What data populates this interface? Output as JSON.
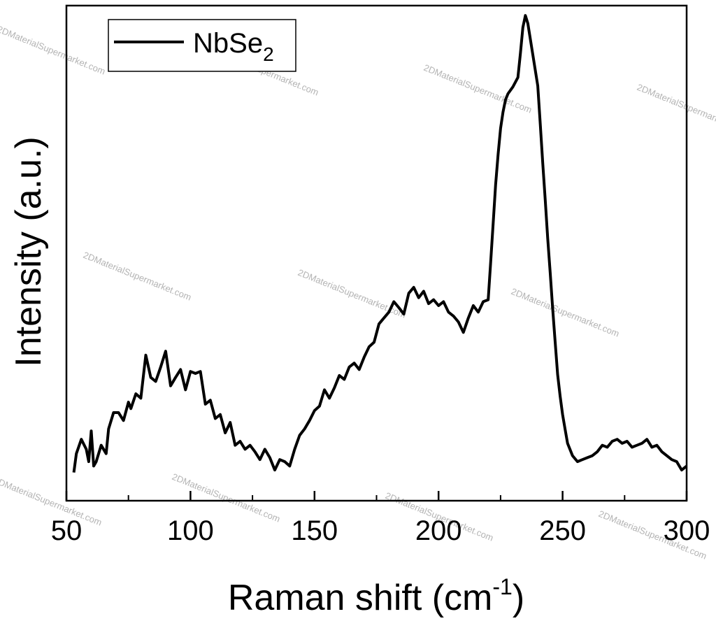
{
  "chart_data": {
    "type": "line",
    "title": "",
    "xlabel": "Raman shift (cm",
    "xlabel_sup": "-1",
    "xlabel_close": ")",
    "ylabel": "Intensity (a.u.)",
    "xlim": [
      50,
      300
    ],
    "ylim": [
      0,
      1
    ],
    "y_tick_labels_shown": false,
    "x_ticks": [
      50,
      100,
      150,
      200,
      250,
      300
    ],
    "x_tick_labels": [
      "50",
      "100",
      "150",
      "200",
      "250",
      "300"
    ],
    "grid": false,
    "legend": {
      "position": "top-left",
      "entries": [
        {
          "base": "NbSe",
          "sub": "2"
        }
      ]
    },
    "series": [
      {
        "name": "NbSe2",
        "color": "#000000",
        "x": [
          53,
          54,
          56,
          58,
          59,
          60,
          61,
          62,
          64,
          66,
          67,
          69,
          71,
          73,
          75,
          76,
          78,
          80,
          82,
          84,
          86,
          88,
          90,
          92,
          94,
          96,
          98,
          100,
          102,
          104,
          106,
          108,
          110,
          112,
          114,
          116,
          118,
          120,
          122,
          124,
          126,
          128,
          130,
          132,
          134,
          136,
          138,
          140,
          142,
          144,
          146,
          148,
          150,
          152,
          154,
          156,
          158,
          160,
          162,
          164,
          166,
          168,
          170,
          172,
          174,
          176,
          178,
          180,
          182,
          184,
          186,
          188,
          190,
          192,
          194,
          196,
          198,
          200,
          202,
          204,
          206,
          208,
          210,
          212,
          214,
          216,
          218,
          220,
          221,
          222,
          223,
          224,
          225,
          226,
          227,
          228,
          230,
          232,
          233,
          234,
          235,
          236,
          238,
          240,
          241,
          242,
          243,
          244,
          245,
          246,
          247,
          248,
          249,
          250,
          251,
          252,
          254,
          256,
          258,
          260,
          262,
          264,
          266,
          268,
          270,
          272,
          274,
          276,
          278,
          280,
          282,
          284,
          286,
          288,
          290,
          292,
          294,
          296,
          298,
          300
        ],
        "values": [
          0.057,
          0.095,
          0.124,
          0.104,
          0.079,
          0.141,
          0.07,
          0.079,
          0.112,
          0.095,
          0.145,
          0.178,
          0.178,
          0.162,
          0.199,
          0.186,
          0.216,
          0.207,
          0.294,
          0.249,
          0.241,
          0.27,
          0.302,
          0.232,
          0.249,
          0.265,
          0.224,
          0.261,
          0.257,
          0.261,
          0.195,
          0.203,
          0.166,
          0.174,
          0.137,
          0.158,
          0.112,
          0.12,
          0.104,
          0.112,
          0.099,
          0.083,
          0.104,
          0.087,
          0.062,
          0.083,
          0.079,
          0.07,
          0.104,
          0.132,
          0.145,
          0.162,
          0.182,
          0.191,
          0.224,
          0.207,
          0.228,
          0.253,
          0.245,
          0.27,
          0.278,
          0.265,
          0.29,
          0.311,
          0.32,
          0.357,
          0.369,
          0.381,
          0.402,
          0.39,
          0.377,
          0.419,
          0.431,
          0.41,
          0.423,
          0.398,
          0.406,
          0.394,
          0.402,
          0.381,
          0.373,
          0.361,
          0.34,
          0.369,
          0.394,
          0.381,
          0.402,
          0.406,
          0.481,
          0.56,
          0.638,
          0.7,
          0.752,
          0.785,
          0.81,
          0.822,
          0.836,
          0.855,
          0.904,
          0.956,
          0.98,
          0.964,
          0.901,
          0.838,
          0.76,
          0.682,
          0.607,
          0.53,
          0.46,
          0.388,
          0.32,
          0.255,
          0.211,
          0.174,
          0.145,
          0.116,
          0.091,
          0.079,
          0.083,
          0.087,
          0.091,
          0.099,
          0.112,
          0.108,
          0.12,
          0.124,
          0.116,
          0.12,
          0.108,
          0.112,
          0.116,
          0.124,
          0.108,
          0.112,
          0.099,
          0.091,
          0.083,
          0.079,
          0.062,
          0.07
        ]
      }
    ]
  },
  "watermark": {
    "text": "2DMaterialSupermarket.com"
  }
}
